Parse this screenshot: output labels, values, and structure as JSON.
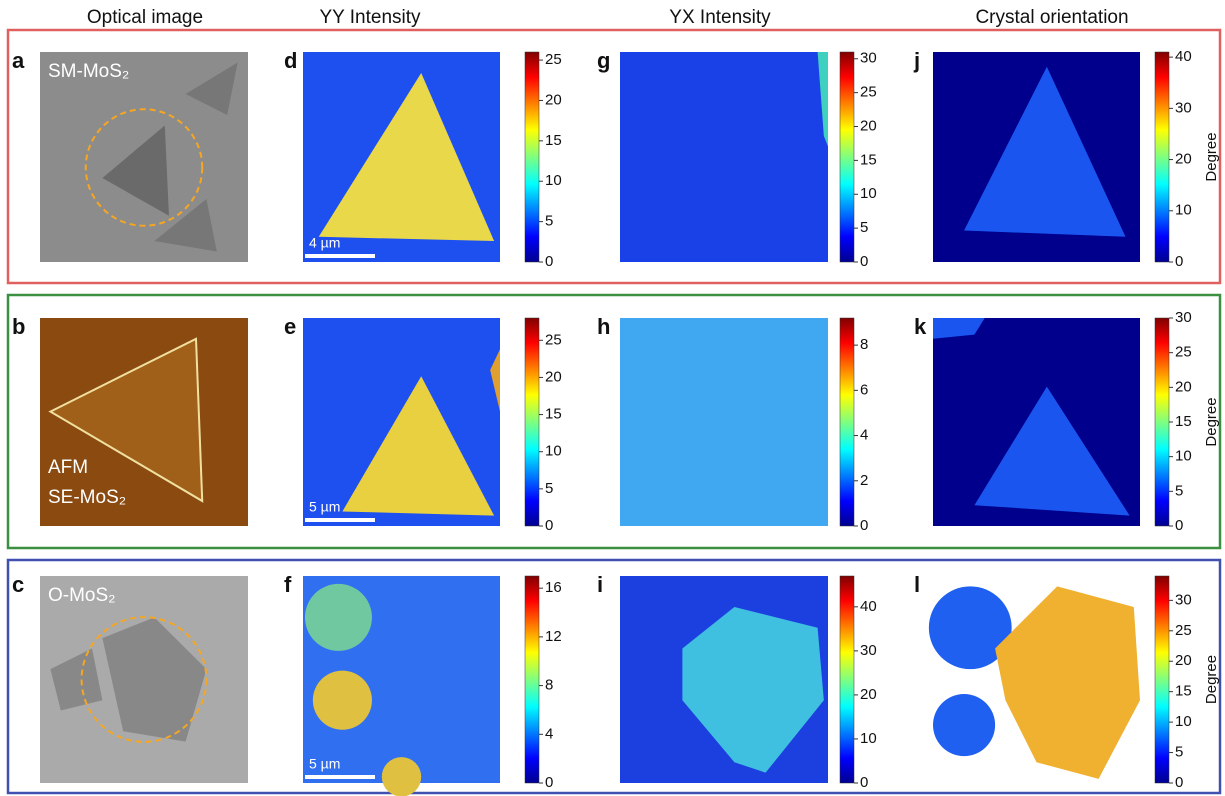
{
  "column_headers": [
    "Optical image",
    "YY Intensity",
    "YX Intensity",
    "Crystal orientation"
  ],
  "rows": [
    {
      "optical": {
        "letter": "a",
        "labels": [
          "SM-MoS₂"
        ]
      },
      "yy": {
        "letter": "d",
        "scale_bar": "4 µm",
        "colorbar": {
          "range": [
            0,
            26
          ],
          "ticks": [
            0,
            5,
            10,
            15,
            20,
            25
          ]
        }
      },
      "yx": {
        "letter": "g",
        "colorbar": {
          "range": [
            0,
            31
          ],
          "ticks": [
            0,
            5,
            10,
            15,
            20,
            25,
            30
          ]
        }
      },
      "orientation": {
        "letter": "j",
        "colorbar_label": "Degree",
        "colorbar": {
          "range": [
            0,
            41
          ],
          "ticks": [
            0,
            10,
            20,
            30,
            40
          ]
        }
      }
    },
    {
      "optical": {
        "letter": "b",
        "labels": [
          "AFM",
          "SE-MoS₂"
        ]
      },
      "yy": {
        "letter": "e",
        "scale_bar": "5 µm",
        "colorbar": {
          "range": [
            0,
            28
          ],
          "ticks": [
            0,
            5,
            10,
            15,
            20,
            25
          ]
        }
      },
      "yx": {
        "letter": "h",
        "colorbar": {
          "range": [
            0,
            9.2
          ],
          "ticks": [
            0,
            2,
            4,
            6,
            8
          ]
        }
      },
      "orientation": {
        "letter": "k",
        "colorbar_label": "Degree",
        "colorbar": {
          "range": [
            0,
            30
          ],
          "ticks": [
            0,
            5,
            10,
            15,
            20,
            25,
            30
          ]
        }
      }
    },
    {
      "optical": {
        "letter": "c",
        "labels": [
          "O-MoS₂"
        ]
      },
      "yy": {
        "letter": "f",
        "scale_bar": "5 µm",
        "colorbar": {
          "range": [
            0,
            17
          ],
          "ticks": [
            0,
            4,
            8,
            12,
            16
          ]
        }
      },
      "yx": {
        "letter": "i",
        "colorbar": {
          "range": [
            0,
            47
          ],
          "ticks": [
            0,
            10,
            20,
            30,
            40
          ]
        }
      },
      "orientation": {
        "letter": "l",
        "colorbar_label": "Degree",
        "colorbar": {
          "range": [
            0,
            34
          ],
          "ticks": [
            0,
            5,
            10,
            15,
            20,
            25,
            30
          ]
        }
      }
    }
  ]
}
